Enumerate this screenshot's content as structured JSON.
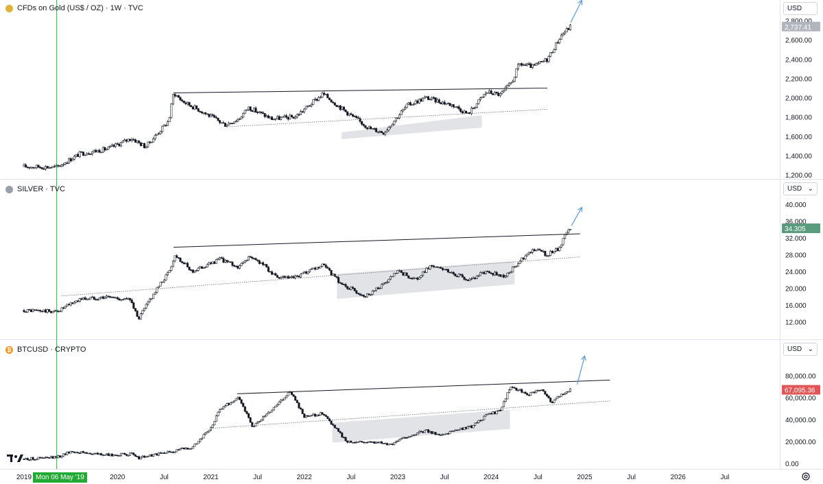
{
  "panels": {
    "gold": {
      "label": "CFDs on Gold (US$ / OZ) · 1W · TVC",
      "currency": "USD",
      "price_tag": "2,737.41",
      "price_tag_color": "#b2b5be"
    },
    "silver": {
      "label": "SILVER · TVC",
      "currency": "USD",
      "price_tag": "34.305",
      "price_tag_color": "#5b9b7d"
    },
    "btc": {
      "label": "BTCUSD · CRYPTO",
      "currency": "USD",
      "price_tag": "67,095.36",
      "price_tag_color": "#e25555"
    }
  },
  "crosshair_date": "Mon 06 May '19",
  "colors": {
    "up": "#ffffff",
    "down": "#131722",
    "crosshair": "#22ab34",
    "arrow": "#5a9bdc",
    "consolidation": "#e2e3e7"
  },
  "chart_data": [
    {
      "type": "candlestick",
      "title": "CFDs on Gold (US$ / OZ) · 1W · TVC",
      "ylim": [
        1200,
        2800
      ],
      "y_ticks": [
        "2,800.00",
        "2,600.00",
        "2,400.00",
        "2,200.00",
        "2,000.00",
        "1,800.00",
        "1,600.00",
        "1,400.00",
        "1,200.00"
      ],
      "tick_values": [
        2800,
        2600,
        2400,
        2200,
        2000,
        1800,
        1600,
        1400,
        1200
      ],
      "last": 2737.41,
      "path": [
        [
          2019.0,
          1285
        ],
        [
          2019.35,
          1280
        ],
        [
          2019.6,
          1420
        ],
        [
          2019.9,
          1470
        ],
        [
          2020.15,
          1580
        ],
        [
          2020.3,
          1490
        ],
        [
          2020.55,
          1760
        ],
        [
          2020.6,
          2050
        ],
        [
          2020.7,
          1960
        ],
        [
          2020.9,
          1860
        ],
        [
          2021.15,
          1720
        ],
        [
          2021.3,
          1780
        ],
        [
          2021.4,
          1900
        ],
        [
          2021.65,
          1780
        ],
        [
          2021.9,
          1800
        ],
        [
          2022.2,
          2040
        ],
        [
          2022.45,
          1850
        ],
        [
          2022.7,
          1680
        ],
        [
          2022.85,
          1640
        ],
        [
          2023.1,
          1920
        ],
        [
          2023.3,
          2000
        ],
        [
          2023.45,
          1960
        ],
        [
          2023.6,
          1920
        ],
        [
          2023.75,
          1830
        ],
        [
          2023.95,
          2060
        ],
        [
          2024.1,
          2030
        ],
        [
          2024.22,
          2160
        ],
        [
          2024.3,
          2350
        ],
        [
          2024.45,
          2320
        ],
        [
          2024.6,
          2400
        ],
        [
          2024.75,
          2650
        ],
        [
          2024.85,
          2740
        ]
      ],
      "resistance": [
        [
          2020.6,
          2050
        ],
        [
          2024.6,
          2100
        ]
      ],
      "support": [
        [
          2021.2,
          1700
        ],
        [
          2024.6,
          1880
        ]
      ],
      "box": [
        [
          2022.4,
          1640
        ],
        [
          2023.9,
          1820
        ],
        [
          2023.9,
          1690
        ],
        [
          2022.4,
          1570
        ]
      ],
      "arrow": [
        [
          2024.85,
          2780
        ],
        [
          2024.97,
          3010
        ]
      ]
    },
    {
      "type": "candlestick",
      "title": "SILVER · TVC",
      "ylim": [
        10,
        41
      ],
      "y_ticks": [
        "40.000",
        "36.000",
        "32.000",
        "28.000",
        "24.000",
        "20.000",
        "16.000",
        "12.000"
      ],
      "tick_values": [
        40,
        36,
        32,
        28,
        24,
        20,
        16,
        12
      ],
      "last": 34.305,
      "path": [
        [
          2019.0,
          14.8
        ],
        [
          2019.35,
          14.5
        ],
        [
          2019.6,
          17.5
        ],
        [
          2019.9,
          18.0
        ],
        [
          2020.15,
          17.2
        ],
        [
          2020.22,
          12.5
        ],
        [
          2020.35,
          17.5
        ],
        [
          2020.55,
          24.0
        ],
        [
          2020.62,
          28.0
        ],
        [
          2020.8,
          24.0
        ],
        [
          2021.1,
          27.0
        ],
        [
          2021.3,
          25.0
        ],
        [
          2021.4,
          27.5
        ],
        [
          2021.55,
          26.0
        ],
        [
          2021.7,
          22.5
        ],
        [
          2021.9,
          22.5
        ],
        [
          2022.2,
          25.5
        ],
        [
          2022.4,
          21.0
        ],
        [
          2022.65,
          18.2
        ],
        [
          2022.85,
          21.0
        ],
        [
          2023.0,
          24.0
        ],
        [
          2023.2,
          22.0
        ],
        [
          2023.35,
          25.5
        ],
        [
          2023.6,
          23.5
        ],
        [
          2023.75,
          22.0
        ],
        [
          2023.95,
          24.0
        ],
        [
          2024.15,
          22.8
        ],
        [
          2024.3,
          26.5
        ],
        [
          2024.45,
          29.5
        ],
        [
          2024.6,
          28.0
        ],
        [
          2024.72,
          29.5
        ],
        [
          2024.8,
          33.0
        ],
        [
          2024.85,
          34.3
        ]
      ],
      "resistance": [
        [
          2020.6,
          29.8
        ],
        [
          2024.95,
          33.0
        ]
      ],
      "support": [
        [
          2019.4,
          18.2
        ],
        [
          2024.95,
          27.5
        ]
      ],
      "box": [
        [
          2022.35,
          23.5
        ],
        [
          2024.25,
          26.5
        ],
        [
          2024.25,
          21.0
        ],
        [
          2022.35,
          17.5
        ]
      ],
      "arrow": [
        [
          2024.86,
          35.0
        ],
        [
          2024.97,
          39.3
        ]
      ]
    },
    {
      "type": "candlestick",
      "title": "BTCUSD · CRYPTO",
      "ylim": [
        0,
        85000
      ],
      "y_ticks": [
        "80,000.00",
        "60,000.00",
        "40,000.00",
        "20,000.00",
        "0.00"
      ],
      "tick_values": [
        80000,
        60000,
        40000,
        20000,
        0
      ],
      "last": 67095.36,
      "path": [
        [
          2019.0,
          4000
        ],
        [
          2019.35,
          5500
        ],
        [
          2019.5,
          11000
        ],
        [
          2019.9,
          7500
        ],
        [
          2020.15,
          8500
        ],
        [
          2020.22,
          5000
        ],
        [
          2020.5,
          9500
        ],
        [
          2020.8,
          15000
        ],
        [
          2021.0,
          32000
        ],
        [
          2021.1,
          50000
        ],
        [
          2021.3,
          60000
        ],
        [
          2021.45,
          33000
        ],
        [
          2021.6,
          45000
        ],
        [
          2021.85,
          66000
        ],
        [
          2022.0,
          42000
        ],
        [
          2022.2,
          46000
        ],
        [
          2022.45,
          20000
        ],
        [
          2022.8,
          19500
        ],
        [
          2022.9,
          16500
        ],
        [
          2023.05,
          23000
        ],
        [
          2023.3,
          30000
        ],
        [
          2023.45,
          26000
        ],
        [
          2023.8,
          34000
        ],
        [
          2023.95,
          44000
        ],
        [
          2024.1,
          48000
        ],
        [
          2024.2,
          70000
        ],
        [
          2024.4,
          63000
        ],
        [
          2024.55,
          67000
        ],
        [
          2024.65,
          55000
        ],
        [
          2024.75,
          63000
        ],
        [
          2024.85,
          67100
        ]
      ],
      "resistance": [
        [
          2021.28,
          63500
        ],
        [
          2025.27,
          76000
        ]
      ],
      "support": [
        [
          2021.0,
          32000
        ],
        [
          2025.27,
          57000
        ]
      ],
      "box": [
        [
          2022.3,
          37000
        ],
        [
          2024.2,
          49000
        ],
        [
          2024.2,
          31500
        ],
        [
          2022.3,
          19000
        ]
      ],
      "arrow": [
        [
          2024.92,
          72000
        ],
        [
          2025.0,
          98000
        ]
      ]
    }
  ],
  "x_axis": {
    "ticks": [
      {
        "label": "2019",
        "t": 2019.0
      },
      {
        "label": "2020",
        "t": 2020.0
      },
      {
        "label": "Jul",
        "t": 2020.5
      },
      {
        "label": "2021",
        "t": 2021.0
      },
      {
        "label": "Jul",
        "t": 2021.5
      },
      {
        "label": "2022",
        "t": 2022.0
      },
      {
        "label": "Jul",
        "t": 2022.5
      },
      {
        "label": "2023",
        "t": 2023.0
      },
      {
        "label": "Jul",
        "t": 2023.5
      },
      {
        "label": "2024",
        "t": 2024.0
      },
      {
        "label": "Jul",
        "t": 2024.5
      },
      {
        "label": "2025",
        "t": 2025.0
      },
      {
        "label": "Jul",
        "t": 2025.5
      },
      {
        "label": "2026",
        "t": 2026.0
      },
      {
        "label": "Jul",
        "t": 2026.5
      }
    ],
    "crosshair_t": 2019.35
  }
}
